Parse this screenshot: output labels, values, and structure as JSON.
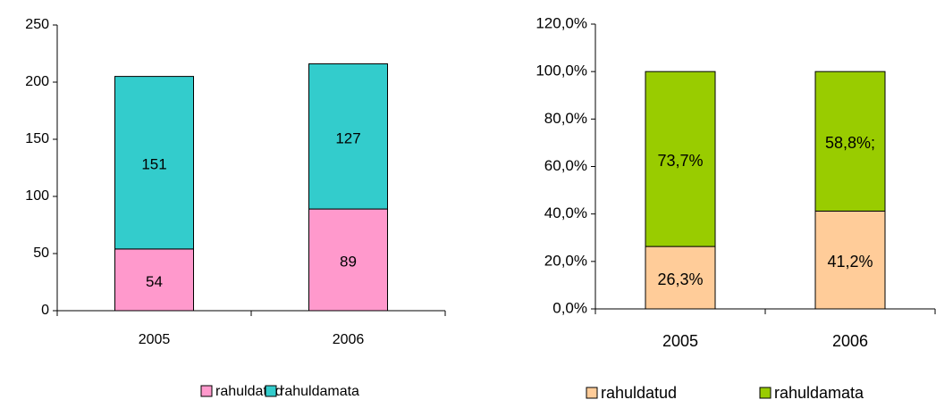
{
  "chart_data": [
    {
      "type": "bar",
      "stacked": true,
      "categories": [
        "2005",
        "2006"
      ],
      "series": [
        {
          "name": "rahuldatud",
          "color": "#ff99cc",
          "values": [
            54,
            89
          ]
        },
        {
          "name": "rahuldamata",
          "color": "#33cccc",
          "values": [
            151,
            127
          ]
        }
      ],
      "ylim": [
        0,
        250
      ],
      "yticks": [
        0,
        50,
        100,
        150,
        200,
        250
      ],
      "grid": false,
      "legend": "bottom"
    },
    {
      "type": "bar",
      "stacked": true,
      "categories": [
        "2005",
        "2006"
      ],
      "series": [
        {
          "name": "rahuldatud",
          "color": "#ffcc99",
          "values": [
            26.3,
            41.2
          ],
          "value_labels": [
            "26,3%",
            "41,2%"
          ]
        },
        {
          "name": "rahuldamata",
          "color": "#99cc00",
          "values": [
            73.7,
            58.8
          ],
          "value_labels": [
            "73,7%",
            "58,8%;"
          ]
        }
      ],
      "ylim": [
        0,
        120
      ],
      "yticks": [
        {
          "value": 0,
          "label": "0,0%"
        },
        {
          "value": 20,
          "label": "20,0%"
        },
        {
          "value": 40,
          "label": "40,0%"
        },
        {
          "value": 60,
          "label": "60,0%"
        },
        {
          "value": 80,
          "label": "80,0%"
        },
        {
          "value": 100,
          "label": "100,0%"
        },
        {
          "value": 120,
          "label": "120,0%"
        }
      ],
      "grid": false,
      "legend": "bottom"
    }
  ]
}
